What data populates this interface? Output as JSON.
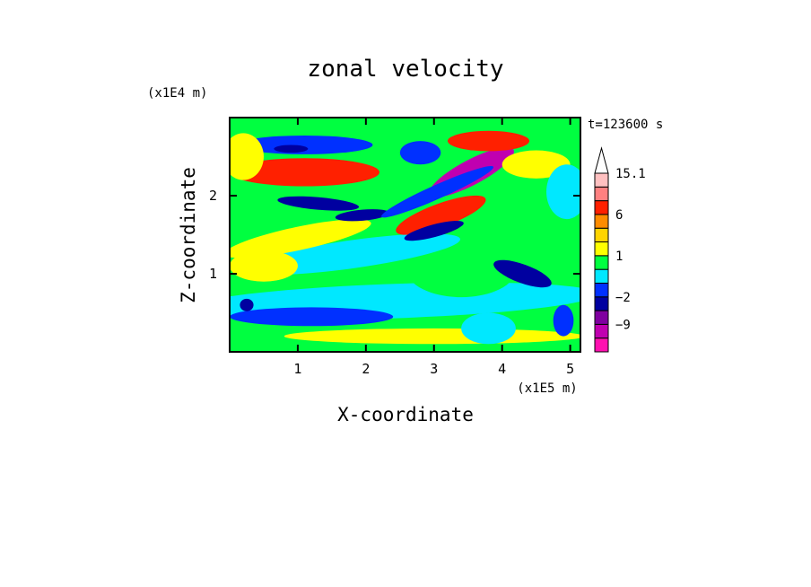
{
  "chart_data": {
    "type": "heatmap",
    "title": "zonal velocity",
    "xlabel": "X-coordinate",
    "ylabel": "Z-coordinate",
    "x_unit": "(x1E5 m)",
    "y_unit": "(x1E4 m)",
    "time_label": "t=123600 s",
    "xlim": [
      0,
      5.15
    ],
    "ylim": [
      0,
      3.0
    ],
    "x_ticks": [
      1,
      2,
      3,
      4,
      5
    ],
    "y_ticks": [
      1,
      2
    ],
    "x_tick_labels": [
      "1",
      "2",
      "3",
      "4",
      "5"
    ],
    "y_tick_labels": [
      "1",
      "2"
    ],
    "colorbar": {
      "levels": [
        -15,
        -12,
        -9,
        -6,
        -2,
        -1,
        0,
        1,
        2,
        3,
        6,
        9,
        12,
        15.1
      ],
      "colors": [
        "#ff10b0",
        "#c000b0",
        "#8000a0",
        "#0000a0",
        "#0030ff",
        "#00e8ff",
        "#00ff40",
        "#ffff00",
        "#ffd400",
        "#ff8c00",
        "#ff2000",
        "#ff8080",
        "#ffc0c0"
      ],
      "extend_max_color": "#ffffff",
      "labels": [
        {
          "value": 15.1,
          "text": "15.1"
        },
        {
          "value": 6,
          "text": "6"
        },
        {
          "value": 1,
          "text": "1"
        },
        {
          "value": -2,
          "text": "−2"
        },
        {
          "value": -9,
          "text": "−9"
        }
      ]
    },
    "base_field_value": 0.5,
    "features": [
      {
        "x": 2.6,
        "z": 0.55,
        "rx": 3.2,
        "rz": 0.35,
        "angle": 0,
        "value": 0.5
      },
      {
        "x": 2.4,
        "z": 0.65,
        "rx": 3.0,
        "rz": 0.22,
        "angle": 2,
        "value": -0.5
      },
      {
        "x": 1.2,
        "z": 0.45,
        "rx": 1.2,
        "rz": 0.12,
        "angle": 0,
        "value": -1.5
      },
      {
        "x": 3.0,
        "z": 0.2,
        "rx": 2.2,
        "rz": 0.1,
        "angle": 0,
        "value": 1.5
      },
      {
        "x": 3.4,
        "z": 1.05,
        "rx": 0.8,
        "rz": 0.35,
        "angle": 0,
        "value": 0.5
      },
      {
        "x": 1.8,
        "z": 1.25,
        "rx": 1.6,
        "rz": 0.18,
        "angle": 8,
        "value": -0.5
      },
      {
        "x": 1.0,
        "z": 1.45,
        "rx": 1.1,
        "rz": 0.15,
        "angle": 12,
        "value": 1.5
      },
      {
        "x": 0.5,
        "z": 1.1,
        "rx": 0.5,
        "rz": 0.2,
        "angle": 0,
        "value": 1.5
      },
      {
        "x": 4.6,
        "z": 1.5,
        "rx": 0.7,
        "rz": 0.5,
        "angle": 0,
        "value": 0.5
      },
      {
        "x": 4.3,
        "z": 1.0,
        "rx": 0.45,
        "rz": 0.12,
        "angle": -20,
        "value": -6
      },
      {
        "x": 3.1,
        "z": 1.75,
        "rx": 0.7,
        "rz": 0.15,
        "angle": 20,
        "value": 6
      },
      {
        "x": 3.0,
        "z": 1.55,
        "rx": 0.45,
        "rz": 0.08,
        "angle": 15,
        "value": -6
      },
      {
        "x": 1.95,
        "z": 1.75,
        "rx": 0.4,
        "rz": 0.07,
        "angle": 5,
        "value": -6
      },
      {
        "x": 1.3,
        "z": 1.9,
        "rx": 0.6,
        "rz": 0.08,
        "angle": -5,
        "value": -6
      },
      {
        "x": 3.55,
        "z": 2.3,
        "rx": 0.7,
        "rz": 0.16,
        "angle": 28,
        "value": -12
      },
      {
        "x": 3.05,
        "z": 2.05,
        "rx": 0.9,
        "rz": 0.09,
        "angle": 24,
        "value": -1.5
      },
      {
        "x": 1.1,
        "z": 2.3,
        "rx": 1.1,
        "rz": 0.18,
        "angle": 0,
        "value": 6
      },
      {
        "x": 3.8,
        "z": 2.7,
        "rx": 0.6,
        "rz": 0.13,
        "angle": 0,
        "value": 6
      },
      {
        "x": 4.5,
        "z": 2.4,
        "rx": 0.5,
        "rz": 0.18,
        "angle": 0,
        "value": 1.5
      },
      {
        "x": 1.1,
        "z": 2.65,
        "rx": 1.0,
        "rz": 0.12,
        "angle": 0,
        "value": -1.5
      },
      {
        "x": 0.9,
        "z": 2.6,
        "rx": 0.25,
        "rz": 0.05,
        "angle": 0,
        "value": -6
      },
      {
        "x": 2.8,
        "z": 2.55,
        "rx": 0.3,
        "rz": 0.15,
        "angle": 0,
        "value": -1.5
      },
      {
        "x": 0.2,
        "z": 2.5,
        "rx": 0.3,
        "rz": 0.3,
        "angle": 0,
        "value": 1.5
      },
      {
        "x": 4.95,
        "z": 2.05,
        "rx": 0.3,
        "rz": 0.35,
        "angle": 0,
        "value": -0.5
      },
      {
        "x": 3.8,
        "z": 0.3,
        "rx": 0.4,
        "rz": 0.2,
        "angle": 0,
        "value": -0.5
      },
      {
        "x": 0.25,
        "z": 0.6,
        "rx": 0.1,
        "rz": 0.08,
        "angle": 0,
        "value": -6
      },
      {
        "x": 4.9,
        "z": 0.4,
        "rx": 0.15,
        "rz": 0.2,
        "angle": 0,
        "value": -1.5
      }
    ]
  }
}
